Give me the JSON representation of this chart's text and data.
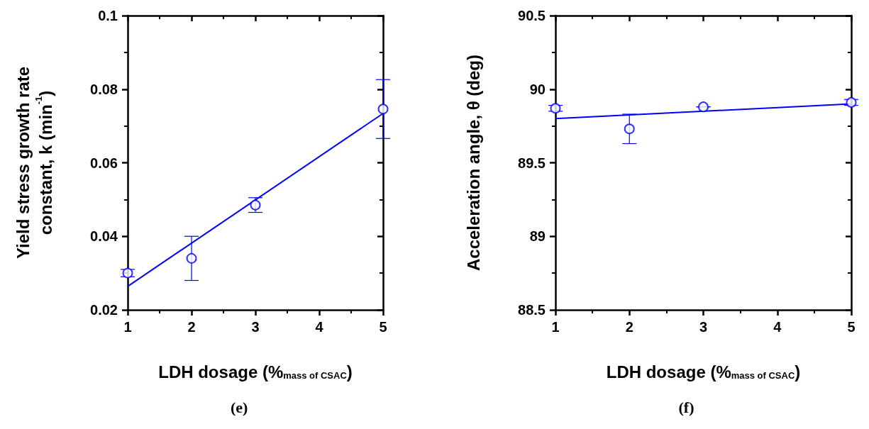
{
  "chart_data": [
    {
      "type": "scatter",
      "title": "(e)",
      "xlabel": "LDH dosage (%$_{mass of CSAC}$)",
      "ylabel": "Yield stress growth rate constant, k (min$^{-1}$)",
      "xlim": [
        1,
        5
      ],
      "xticks": [
        1,
        2,
        3,
        4,
        5
      ],
      "ylim": [
        0.02,
        0.1
      ],
      "yticks": [
        0.02,
        0.04,
        0.06,
        0.08,
        0.1
      ],
      "grid": false,
      "series": [
        {
          "marker": "circle",
          "color": "#0000ff",
          "x": [
            1,
            2,
            3,
            5
          ],
          "values": [
            0.03,
            0.034,
            0.0485,
            0.0746
          ],
          "errors": [
            0.001,
            0.006,
            0.002,
            0.008
          ]
        },
        {
          "type": "line",
          "color": "#0000ff",
          "x": [
            1,
            5
          ],
          "values": [
            0.0264,
            0.0734
          ],
          "line_style": "solid"
        }
      ]
    },
    {
      "type": "scatter",
      "title": "(f)",
      "xlabel": "LDH dosage (%$_{mass of CSAC}$)",
      "ylabel": "Acceleration angle, θ (deg)",
      "xlim": [
        1,
        5
      ],
      "xticks": [
        1,
        2,
        3,
        4,
        5
      ],
      "ylim": [
        88.5,
        90.5
      ],
      "yticks": [
        88.5,
        89,
        89.5,
        90,
        90.5
      ],
      "grid": false,
      "series": [
        {
          "marker": "circle",
          "color": "#0000ff",
          "x": [
            1,
            2,
            3,
            5
          ],
          "values": [
            89.87,
            89.73,
            89.88,
            89.91
          ],
          "errors": [
            0.02,
            0.1,
            null,
            0.02
          ]
        },
        {
          "type": "line",
          "color": "#0000ff",
          "x": [
            1,
            5
          ],
          "values": [
            89.8,
            89.9
          ],
          "line_style": "solid"
        }
      ]
    }
  ]
}
